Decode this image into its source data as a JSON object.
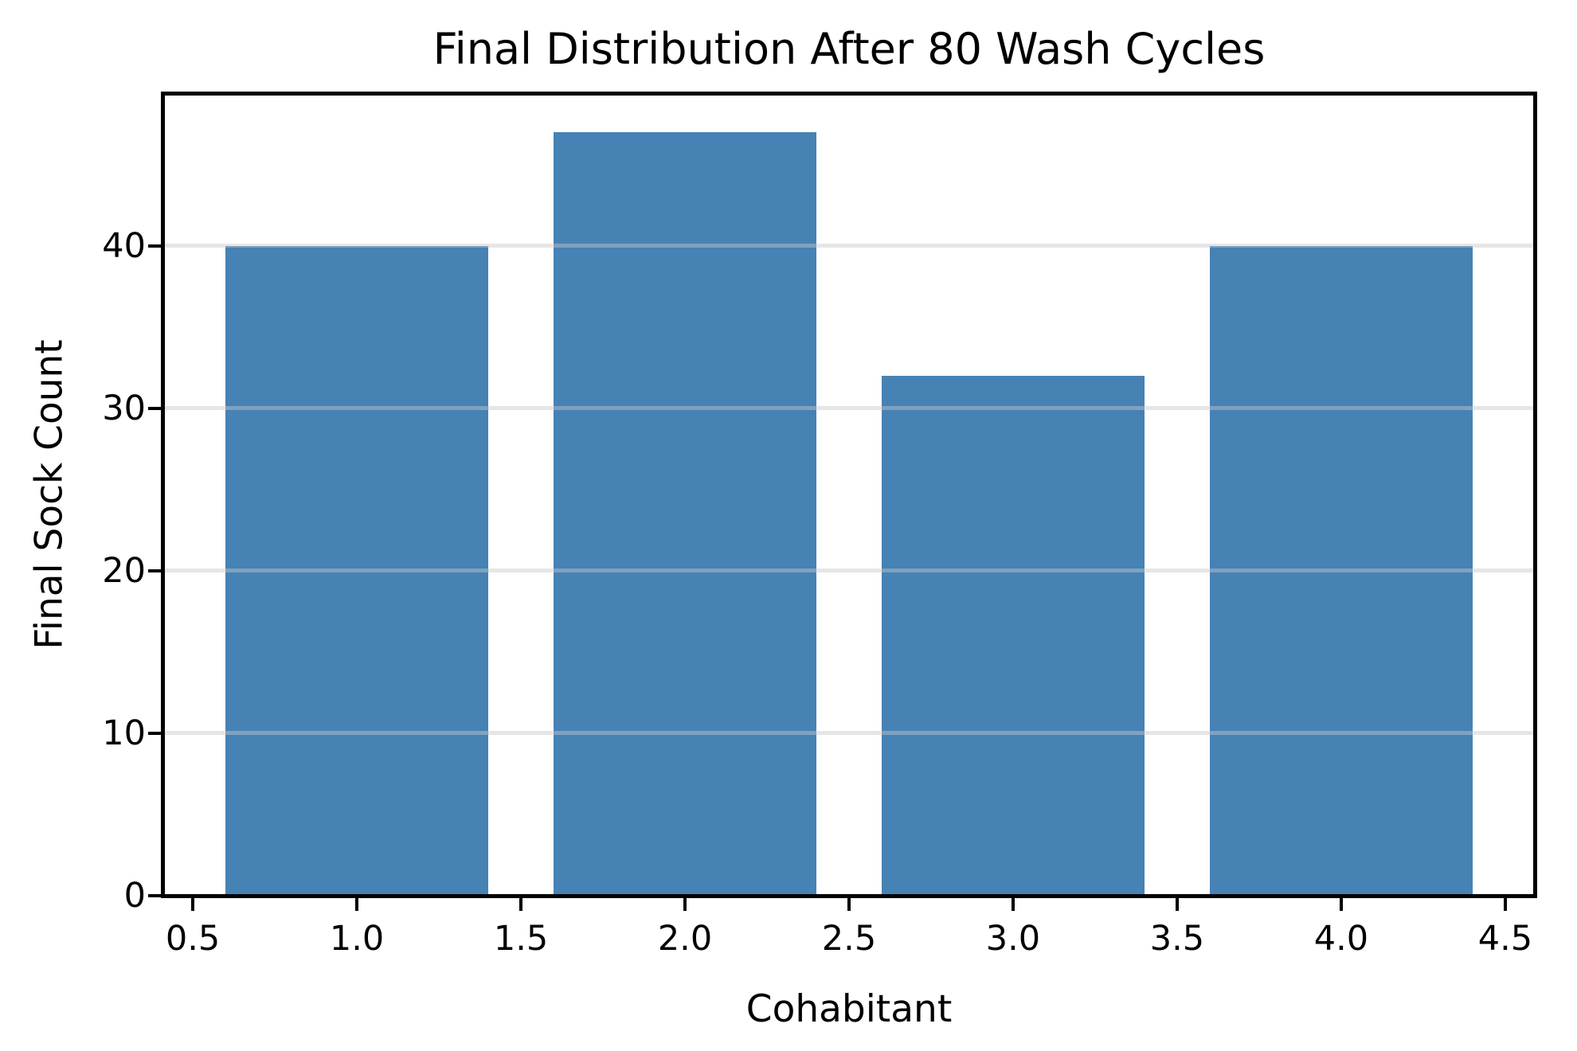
{
  "chart_data": {
    "type": "bar",
    "title": "Final Distribution After 80 Wash Cycles",
    "xlabel": "Cohabitant",
    "ylabel": "Final Sock Count",
    "x": [
      1,
      2,
      3,
      4
    ],
    "values": [
      40,
      47,
      32,
      40
    ],
    "bar_width": 0.8,
    "bar_color": "#4682b4",
    "xlim": [
      0.41,
      4.59
    ],
    "ylim": [
      0,
      49.35
    ],
    "xticks": [
      0.5,
      1.0,
      1.5,
      2.0,
      2.5,
      3.0,
      3.5,
      4.0,
      4.5
    ],
    "xtick_labels": [
      "0.5",
      "1.0",
      "1.5",
      "2.0",
      "2.5",
      "3.0",
      "3.5",
      "4.0",
      "4.5"
    ],
    "yticks": [
      0,
      10,
      20,
      30,
      40
    ],
    "ytick_labels": [
      "0",
      "10",
      "20",
      "30",
      "40"
    ],
    "grid": "horizontal-over-bars",
    "grid_color": "rgba(200,200,200,0.45)",
    "axis_color": "#000000",
    "text_color": "#000000",
    "background_color": "#ffffff",
    "legend": "none"
  }
}
